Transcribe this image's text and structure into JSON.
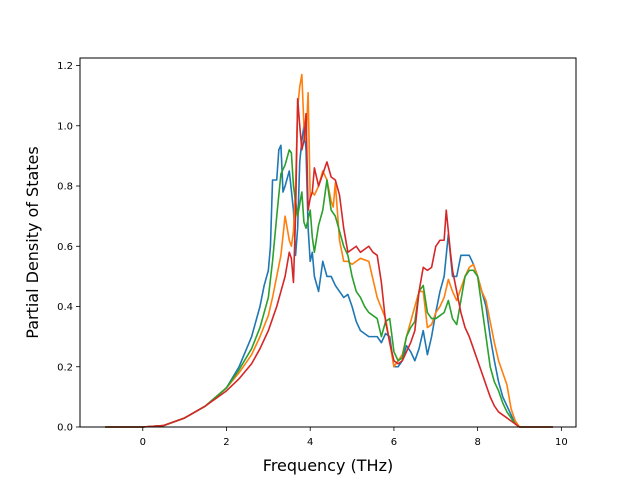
{
  "chart_data": {
    "type": "line",
    "title": "",
    "xlabel": "Frequency (THz)",
    "ylabel": "Partial Density of States",
    "xlim": [
      -1.5,
      10.35
    ],
    "ylim": [
      0.0,
      1.225
    ],
    "xticks": [
      0,
      2,
      4,
      6,
      8,
      10
    ],
    "yticks": [
      0.0,
      0.2,
      0.4,
      0.6,
      0.8,
      1.0,
      1.2
    ],
    "grid": false,
    "legend": "none",
    "colors": [
      "#1f77b4",
      "#ff7f0e",
      "#2ca02c",
      "#d62728"
    ],
    "series": [
      {
        "x": [
          -0.9,
          0,
          0.5,
          1,
          1.5,
          2,
          2.3,
          2.6,
          2.8,
          2.9,
          3.0,
          3.05,
          3.1,
          3.2,
          3.25,
          3.3,
          3.35,
          3.4,
          3.5,
          3.6,
          3.65,
          3.7,
          3.75,
          3.8,
          3.85,
          3.9,
          3.95,
          4.0,
          4.05,
          4.1,
          4.2,
          4.3,
          4.4,
          4.5,
          4.6,
          4.7,
          4.8,
          4.9,
          5.0,
          5.1,
          5.2,
          5.4,
          5.6,
          5.7,
          5.8,
          5.9,
          6.0,
          6.1,
          6.2,
          6.3,
          6.4,
          6.5,
          6.6,
          6.7,
          6.8,
          6.9,
          7.0,
          7.1,
          7.2,
          7.3,
          7.4,
          7.5,
          7.6,
          7.7,
          7.8,
          7.9,
          8.0,
          8.1,
          8.2,
          8.3,
          8.4,
          8.5,
          8.6,
          8.7,
          8.8,
          8.9,
          9.0,
          9.8
        ],
        "values": [
          0,
          0,
          0.005,
          0.03,
          0.07,
          0.13,
          0.2,
          0.3,
          0.4,
          0.47,
          0.52,
          0.6,
          0.82,
          0.82,
          0.92,
          0.935,
          0.78,
          0.8,
          0.85,
          0.72,
          0.57,
          0.66,
          0.88,
          0.95,
          1.0,
          0.92,
          0.66,
          0.55,
          0.58,
          0.5,
          0.45,
          0.55,
          0.5,
          0.5,
          0.47,
          0.45,
          0.43,
          0.44,
          0.4,
          0.35,
          0.32,
          0.3,
          0.3,
          0.28,
          0.31,
          0.3,
          0.2,
          0.2,
          0.22,
          0.27,
          0.25,
          0.22,
          0.26,
          0.32,
          0.24,
          0.3,
          0.38,
          0.45,
          0.5,
          0.64,
          0.5,
          0.5,
          0.57,
          0.57,
          0.57,
          0.54,
          0.5,
          0.45,
          0.4,
          0.3,
          0.22,
          0.15,
          0.1,
          0.07,
          0.04,
          0.01,
          0,
          0
        ]
      },
      {
        "x": [
          -0.9,
          0,
          0.5,
          1,
          1.5,
          2,
          2.3,
          2.6,
          2.8,
          3.0,
          3.1,
          3.2,
          3.3,
          3.4,
          3.5,
          3.55,
          3.6,
          3.65,
          3.7,
          3.75,
          3.8,
          3.85,
          3.9,
          3.95,
          4.0,
          4.05,
          4.1,
          4.2,
          4.3,
          4.4,
          4.5,
          4.55,
          4.6,
          4.7,
          4.8,
          4.9,
          5.0,
          5.2,
          5.4,
          5.6,
          5.8,
          6.0,
          6.1,
          6.2,
          6.3,
          6.4,
          6.5,
          6.6,
          6.7,
          6.8,
          6.9,
          7.0,
          7.1,
          7.2,
          7.3,
          7.4,
          7.5,
          7.6,
          7.7,
          7.8,
          7.9,
          8.0,
          8.1,
          8.2,
          8.3,
          8.4,
          8.5,
          8.6,
          8.7,
          8.8,
          8.9,
          9.0,
          9.8
        ],
        "values": [
          0,
          0,
          0.005,
          0.03,
          0.07,
          0.13,
          0.18,
          0.24,
          0.3,
          0.37,
          0.43,
          0.5,
          0.57,
          0.7,
          0.62,
          0.6,
          0.65,
          0.8,
          1.06,
          1.13,
          1.17,
          1.0,
          0.95,
          1.11,
          0.76,
          0.78,
          0.77,
          0.8,
          0.85,
          0.82,
          0.75,
          0.73,
          0.81,
          0.62,
          0.55,
          0.55,
          0.54,
          0.56,
          0.55,
          0.43,
          0.36,
          0.2,
          0.22,
          0.24,
          0.3,
          0.35,
          0.4,
          0.45,
          0.45,
          0.33,
          0.34,
          0.38,
          0.4,
          0.43,
          0.49,
          0.45,
          0.42,
          0.46,
          0.5,
          0.53,
          0.54,
          0.5,
          0.45,
          0.42,
          0.35,
          0.28,
          0.22,
          0.18,
          0.14,
          0.06,
          0.02,
          0,
          0
        ]
      },
      {
        "x": [
          -0.9,
          0,
          0.5,
          1,
          1.5,
          2,
          2.3,
          2.6,
          2.8,
          3.0,
          3.1,
          3.2,
          3.3,
          3.4,
          3.5,
          3.55,
          3.6,
          3.7,
          3.8,
          3.85,
          3.9,
          4.0,
          4.05,
          4.1,
          4.2,
          4.3,
          4.4,
          4.5,
          4.6,
          4.7,
          4.8,
          4.9,
          5.0,
          5.1,
          5.2,
          5.3,
          5.4,
          5.5,
          5.6,
          5.7,
          5.8,
          5.9,
          6.0,
          6.1,
          6.2,
          6.3,
          6.4,
          6.5,
          6.6,
          6.7,
          6.8,
          6.9,
          7.0,
          7.1,
          7.2,
          7.3,
          7.4,
          7.5,
          7.6,
          7.7,
          7.8,
          7.9,
          8.0,
          8.1,
          8.2,
          8.3,
          8.4,
          8.5,
          8.6,
          8.7,
          8.8,
          8.9,
          9.0,
          9.8
        ],
        "values": [
          0,
          0,
          0.005,
          0.03,
          0.07,
          0.13,
          0.19,
          0.26,
          0.33,
          0.43,
          0.55,
          0.7,
          0.84,
          0.87,
          0.92,
          0.91,
          0.8,
          0.7,
          0.78,
          0.68,
          0.66,
          0.72,
          0.63,
          0.58,
          0.67,
          0.72,
          0.82,
          0.72,
          0.7,
          0.65,
          0.6,
          0.57,
          0.5,
          0.45,
          0.43,
          0.4,
          0.38,
          0.37,
          0.36,
          0.3,
          0.35,
          0.36,
          0.25,
          0.22,
          0.23,
          0.3,
          0.33,
          0.35,
          0.45,
          0.47,
          0.38,
          0.36,
          0.36,
          0.37,
          0.38,
          0.42,
          0.36,
          0.34,
          0.42,
          0.5,
          0.52,
          0.52,
          0.5,
          0.4,
          0.3,
          0.2,
          0.15,
          0.12,
          0.08,
          0.05,
          0.03,
          0.01,
          0,
          0
        ]
      },
      {
        "x": [
          -0.9,
          0,
          0.5,
          1,
          1.5,
          2,
          2.3,
          2.6,
          2.8,
          3.0,
          3.1,
          3.2,
          3.3,
          3.4,
          3.5,
          3.55,
          3.6,
          3.65,
          3.7,
          3.75,
          3.8,
          3.85,
          3.9,
          3.95,
          4.0,
          4.05,
          4.1,
          4.2,
          4.3,
          4.4,
          4.5,
          4.6,
          4.7,
          4.8,
          4.9,
          5.0,
          5.1,
          5.2,
          5.3,
          5.4,
          5.5,
          5.6,
          5.7,
          5.8,
          5.9,
          6.0,
          6.1,
          6.2,
          6.3,
          6.4,
          6.5,
          6.6,
          6.7,
          6.8,
          6.9,
          7.0,
          7.1,
          7.2,
          7.25,
          7.3,
          7.35,
          7.4,
          7.5,
          7.6,
          7.7,
          7.8,
          7.9,
          8.0,
          8.1,
          8.2,
          8.3,
          8.4,
          8.5,
          8.6,
          8.7,
          8.8,
          8.9,
          9.0,
          9.8
        ],
        "values": [
          0,
          0,
          0.005,
          0.03,
          0.07,
          0.12,
          0.16,
          0.21,
          0.26,
          0.32,
          0.36,
          0.4,
          0.45,
          0.5,
          0.58,
          0.56,
          0.48,
          0.7,
          1.09,
          1.0,
          0.92,
          0.95,
          1.04,
          0.72,
          0.76,
          0.78,
          0.86,
          0.8,
          0.84,
          0.88,
          0.83,
          0.82,
          0.77,
          0.66,
          0.58,
          0.59,
          0.6,
          0.58,
          0.59,
          0.6,
          0.58,
          0.57,
          0.48,
          0.35,
          0.28,
          0.22,
          0.21,
          0.22,
          0.25,
          0.28,
          0.32,
          0.45,
          0.53,
          0.52,
          0.53,
          0.6,
          0.62,
          0.62,
          0.72,
          0.65,
          0.58,
          0.52,
          0.45,
          0.38,
          0.33,
          0.3,
          0.26,
          0.22,
          0.18,
          0.14,
          0.1,
          0.07,
          0.05,
          0.04,
          0.03,
          0.02,
          0.01,
          0,
          0
        ]
      }
    ]
  }
}
